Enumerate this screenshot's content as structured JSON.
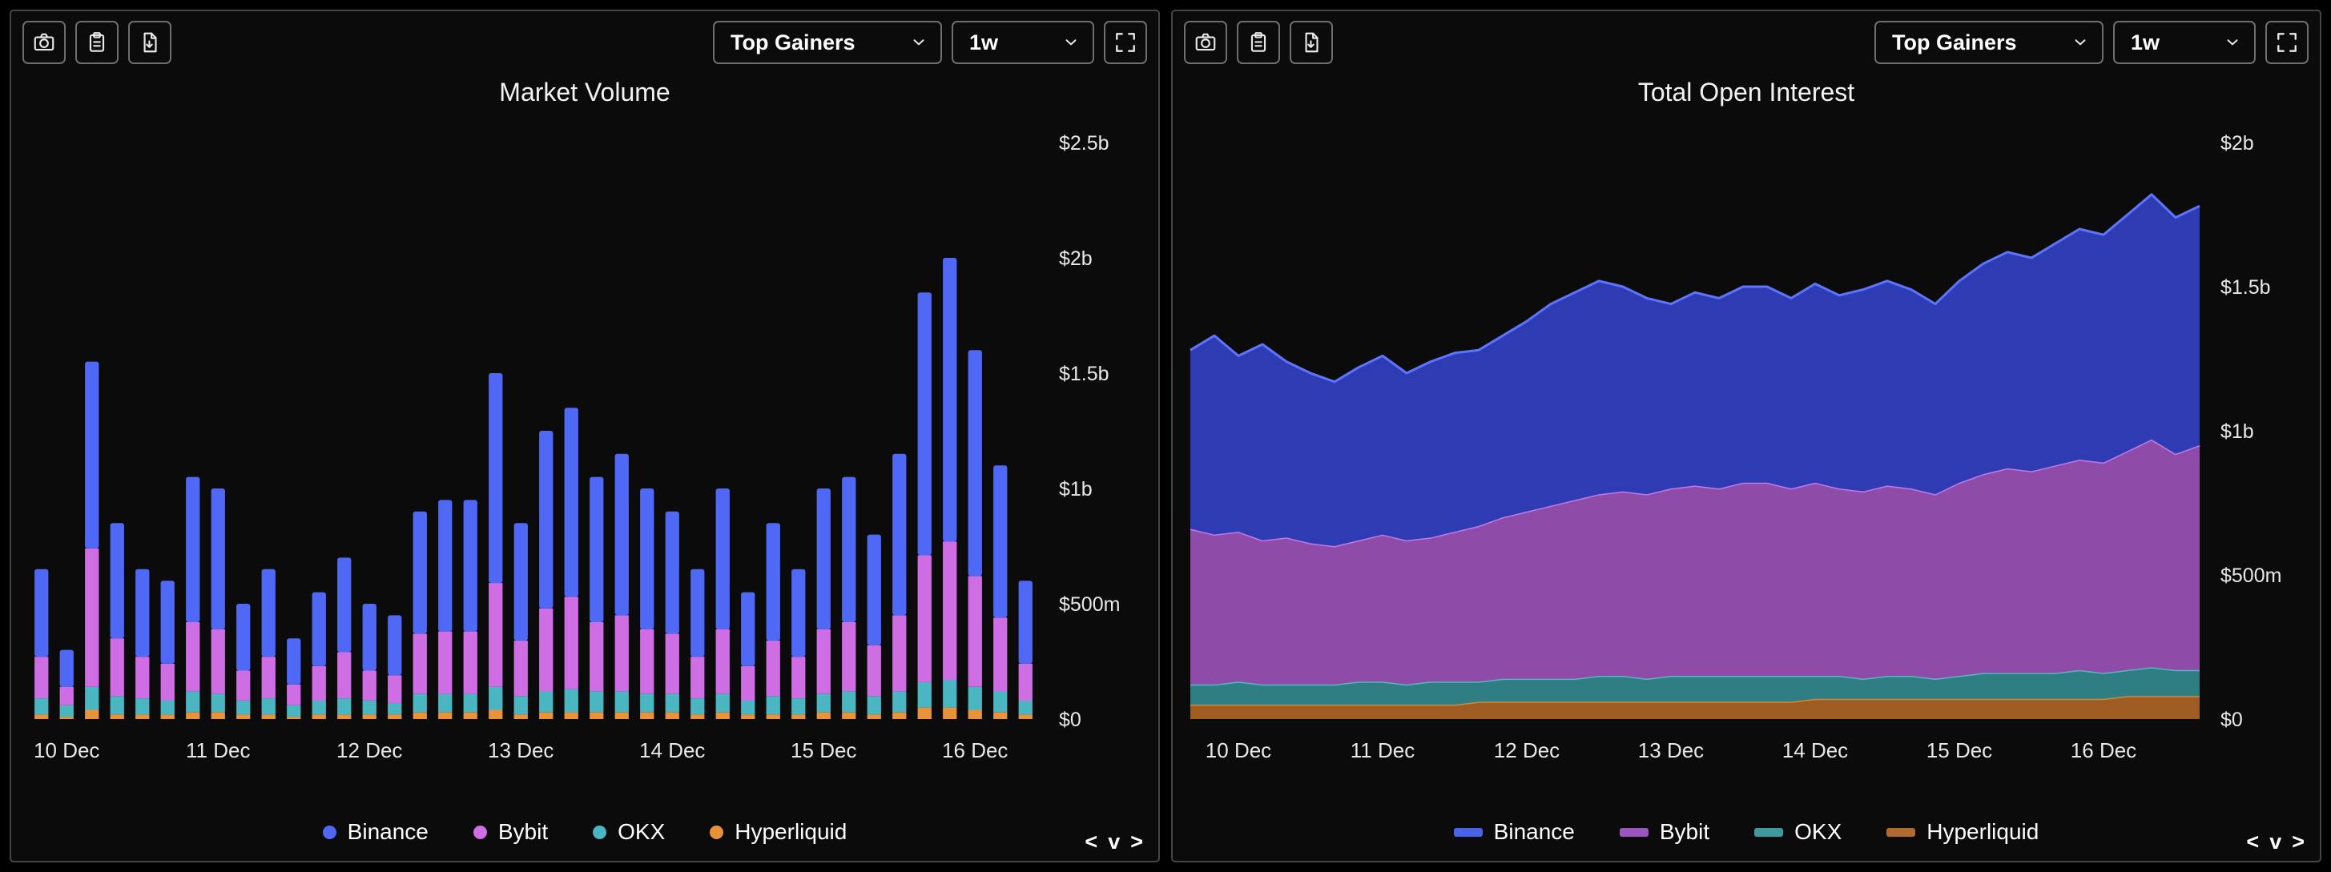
{
  "panels": [
    {
      "name": "Market Volume",
      "toolbar": {
        "screenshot_icon": "camera-icon",
        "copy_icon": "clipboard-icon",
        "export_icon": "file-download-icon",
        "filter_select": "Top Gainers",
        "range_select": "1w",
        "fullscreen_icon": "fullscreen-icon"
      },
      "legend": [
        {
          "label": "Binance",
          "color": "#4f68f5",
          "marker": "dot"
        },
        {
          "label": "Bybit",
          "color": "#cf6ee4",
          "marker": "dot"
        },
        {
          "label": "OKX",
          "color": "#49b6c2",
          "marker": "dot"
        },
        {
          "label": "Hyperliquid",
          "color": "#e8923a",
          "marker": "dot"
        }
      ],
      "pager": {
        "prev": "<",
        "mid": "v",
        "next": ">"
      }
    },
    {
      "name": "Total Open Interest",
      "toolbar": {
        "screenshot_icon": "camera-icon",
        "copy_icon": "clipboard-icon",
        "export_icon": "file-download-icon",
        "filter_select": "Top Gainers",
        "range_select": "1w",
        "fullscreen_icon": "fullscreen-icon"
      },
      "legend": [
        {
          "label": "Binance",
          "color": "#4a62e8",
          "marker": "line"
        },
        {
          "label": "Bybit",
          "color": "#9a55c0",
          "marker": "line"
        },
        {
          "label": "OKX",
          "color": "#3f9aa0",
          "marker": "line"
        },
        {
          "label": "Hyperliquid",
          "color": "#b06a30",
          "marker": "line"
        }
      ],
      "pager": {
        "prev": "<",
        "mid": "v",
        "next": ">"
      }
    }
  ],
  "chart_data": [
    {
      "type": "bar",
      "stacked": true,
      "title": "Market Volume",
      "xlabel": "",
      "ylabel": "",
      "unit": "billions USD",
      "ylim": [
        0,
        2.5
      ],
      "y_ticks": [
        "$0",
        "$500m",
        "$1b",
        "$1.5b",
        "$2b",
        "$2.5b"
      ],
      "y_tick_values": [
        0,
        0.5,
        1,
        1.5,
        2,
        2.5
      ],
      "x_tick_labels": [
        "10 Dec",
        "11 Dec",
        "12 Dec",
        "13 Dec",
        "14 Dec",
        "15 Dec",
        "16 Dec"
      ],
      "x_tick_positions": [
        1,
        7,
        13,
        19,
        25,
        31,
        37
      ],
      "legend_position": "bottom",
      "grid": false,
      "series": [
        {
          "name": "Hyperliquid",
          "color": "#e8923a",
          "values": [
            0.02,
            0.01,
            0.04,
            0.02,
            0.02,
            0.02,
            0.03,
            0.03,
            0.02,
            0.02,
            0.01,
            0.02,
            0.02,
            0.02,
            0.02,
            0.03,
            0.03,
            0.03,
            0.04,
            0.02,
            0.03,
            0.03,
            0.03,
            0.03,
            0.03,
            0.03,
            0.02,
            0.03,
            0.02,
            0.02,
            0.02,
            0.03,
            0.03,
            0.02,
            0.03,
            0.05,
            0.05,
            0.04,
            0.03,
            0.02
          ]
        },
        {
          "name": "OKX",
          "color": "#49b6c2",
          "values": [
            0.07,
            0.05,
            0.1,
            0.08,
            0.07,
            0.06,
            0.09,
            0.08,
            0.06,
            0.07,
            0.05,
            0.06,
            0.07,
            0.06,
            0.05,
            0.08,
            0.08,
            0.08,
            0.1,
            0.08,
            0.09,
            0.1,
            0.09,
            0.09,
            0.08,
            0.08,
            0.07,
            0.08,
            0.06,
            0.08,
            0.07,
            0.08,
            0.09,
            0.08,
            0.09,
            0.11,
            0.12,
            0.1,
            0.09,
            0.06
          ]
        },
        {
          "name": "Bybit",
          "color": "#cf6ee4",
          "values": [
            0.18,
            0.08,
            0.6,
            0.25,
            0.18,
            0.16,
            0.3,
            0.28,
            0.13,
            0.18,
            0.09,
            0.15,
            0.2,
            0.13,
            0.12,
            0.26,
            0.27,
            0.27,
            0.45,
            0.24,
            0.36,
            0.4,
            0.3,
            0.33,
            0.28,
            0.26,
            0.18,
            0.28,
            0.15,
            0.24,
            0.18,
            0.28,
            0.3,
            0.22,
            0.33,
            0.55,
            0.6,
            0.48,
            0.32,
            0.16
          ]
        },
        {
          "name": "Binance",
          "color": "#4f68f5",
          "values": [
            0.38,
            0.16,
            0.81,
            0.5,
            0.38,
            0.36,
            0.63,
            0.61,
            0.29,
            0.38,
            0.2,
            0.32,
            0.41,
            0.29,
            0.26,
            0.53,
            0.57,
            0.57,
            0.91,
            0.51,
            0.77,
            0.82,
            0.63,
            0.7,
            0.61,
            0.53,
            0.38,
            0.61,
            0.32,
            0.51,
            0.38,
            0.61,
            0.63,
            0.48,
            0.7,
            1.14,
            1.23,
            0.98,
            0.66,
            0.36
          ]
        }
      ]
    },
    {
      "type": "area",
      "stacked": true,
      "title": "Total Open Interest",
      "xlabel": "",
      "ylabel": "",
      "unit": "billions USD",
      "ylim": [
        0,
        2
      ],
      "y_ticks": [
        "$0",
        "$500m",
        "$1b",
        "$1.5b",
        "$2b"
      ],
      "y_tick_values": [
        0,
        0.5,
        1,
        1.5,
        2
      ],
      "x_tick_labels": [
        "10 Dec",
        "11 Dec",
        "12 Dec",
        "13 Dec",
        "14 Dec",
        "15 Dec",
        "16 Dec"
      ],
      "x_tick_positions": [
        2,
        8,
        14,
        20,
        26,
        32,
        38
      ],
      "legend_position": "bottom",
      "grid": false,
      "series": [
        {
          "name": "Hyperliquid",
          "fill": "#9f5c22",
          "stroke": "#d2873a",
          "values": [
            0.05,
            0.05,
            0.05,
            0.05,
            0.05,
            0.05,
            0.05,
            0.05,
            0.05,
            0.05,
            0.05,
            0.05,
            0.06,
            0.06,
            0.06,
            0.06,
            0.06,
            0.06,
            0.06,
            0.06,
            0.06,
            0.06,
            0.06,
            0.06,
            0.06,
            0.06,
            0.07,
            0.07,
            0.07,
            0.07,
            0.07,
            0.07,
            0.07,
            0.07,
            0.07,
            0.07,
            0.07,
            0.07,
            0.07,
            0.08,
            0.08,
            0.08,
            0.08
          ]
        },
        {
          "name": "OKX",
          "fill": "#2e7e84",
          "stroke": "#54b8bf",
          "values": [
            0.07,
            0.07,
            0.08,
            0.07,
            0.07,
            0.07,
            0.07,
            0.08,
            0.08,
            0.07,
            0.08,
            0.08,
            0.07,
            0.08,
            0.08,
            0.08,
            0.08,
            0.09,
            0.09,
            0.08,
            0.09,
            0.09,
            0.09,
            0.09,
            0.09,
            0.09,
            0.08,
            0.08,
            0.07,
            0.08,
            0.08,
            0.07,
            0.08,
            0.09,
            0.09,
            0.09,
            0.09,
            0.1,
            0.09,
            0.09,
            0.1,
            0.09,
            0.09
          ]
        },
        {
          "name": "Bybit",
          "fill": "#8e4ba8",
          "stroke": "#c07ae8",
          "values": [
            0.54,
            0.52,
            0.52,
            0.5,
            0.51,
            0.49,
            0.48,
            0.49,
            0.51,
            0.5,
            0.5,
            0.52,
            0.54,
            0.56,
            0.58,
            0.6,
            0.62,
            0.63,
            0.64,
            0.64,
            0.65,
            0.66,
            0.65,
            0.67,
            0.67,
            0.65,
            0.67,
            0.65,
            0.65,
            0.66,
            0.65,
            0.64,
            0.67,
            0.69,
            0.71,
            0.7,
            0.72,
            0.73,
            0.73,
            0.76,
            0.79,
            0.75,
            0.78
          ]
        },
        {
          "name": "Binance",
          "fill": "#2e3bb3",
          "stroke": "#5d74ff",
          "values": [
            0.62,
            0.69,
            0.61,
            0.68,
            0.61,
            0.59,
            0.57,
            0.6,
            0.62,
            0.58,
            0.61,
            0.62,
            0.61,
            0.63,
            0.66,
            0.7,
            0.72,
            0.74,
            0.71,
            0.68,
            0.64,
            0.67,
            0.66,
            0.68,
            0.68,
            0.66,
            0.69,
            0.67,
            0.7,
            0.71,
            0.69,
            0.66,
            0.7,
            0.73,
            0.75,
            0.74,
            0.77,
            0.8,
            0.79,
            0.82,
            0.85,
            0.82,
            0.83
          ]
        }
      ]
    }
  ]
}
